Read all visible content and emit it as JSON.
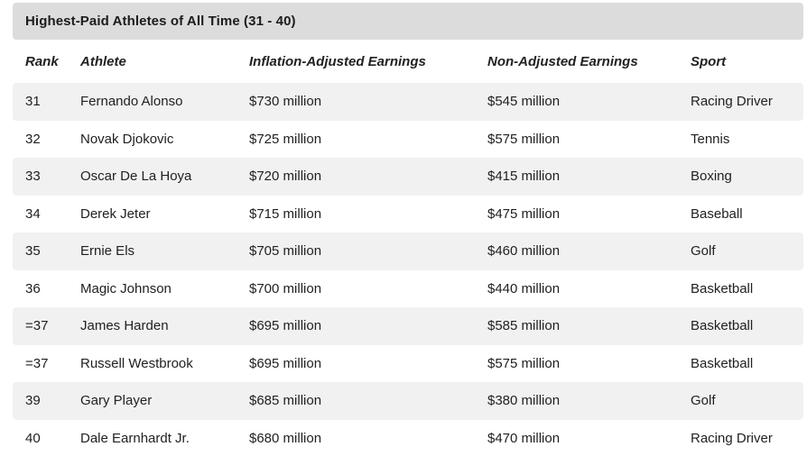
{
  "table": {
    "title": "Highest-Paid Athletes of All Time (31 - 40)",
    "columns": [
      "Rank",
      "Athlete",
      "Inflation-Adjusted Earnings",
      "Non-Adjusted Earnings",
      "Sport"
    ],
    "rows": [
      [
        "31",
        "Fernando Alonso",
        "$730 million",
        "$545 million",
        "Racing Driver"
      ],
      [
        "32",
        "Novak Djokovic",
        "$725 million",
        "$575 million",
        "Tennis"
      ],
      [
        "33",
        "Oscar De La Hoya",
        "$720 million",
        "$415 million",
        "Boxing"
      ],
      [
        "34",
        "Derek Jeter",
        "$715 million",
        "$475 million",
        "Baseball"
      ],
      [
        "35",
        "Ernie Els",
        "$705 million",
        "$460 million",
        "Golf"
      ],
      [
        "36",
        "Magic Johnson",
        "$700 million",
        "$440 million",
        "Basketball"
      ],
      [
        "=37",
        "James Harden",
        "$695 million",
        "$585 million",
        "Basketball"
      ],
      [
        "=37",
        "Russell Westbrook",
        "$695 million",
        "$575 million",
        "Basketball"
      ],
      [
        "39",
        "Gary Player",
        "$685 million",
        "$380 million",
        "Golf"
      ],
      [
        "40",
        "Dale Earnhardt Jr.",
        "$680 million",
        "$470 million",
        "Racing Driver"
      ]
    ],
    "colors": {
      "title_bar_bg": "#dcdcdc",
      "stripe_bg": "#f1f1f1",
      "text": "#212121"
    }
  },
  "chart_data": {
    "type": "table",
    "title": "Highest-Paid Athletes of All Time (31 - 40)",
    "columns": [
      "Rank",
      "Athlete",
      "Inflation-Adjusted Earnings",
      "Non-Adjusted Earnings",
      "Sport"
    ],
    "rows": [
      {
        "rank": "31",
        "athlete": "Fernando Alonso",
        "inflation_adjusted_earnings": "$730 million",
        "non_adjusted_earnings": "$545 million",
        "sport": "Racing Driver"
      },
      {
        "rank": "32",
        "athlete": "Novak Djokovic",
        "inflation_adjusted_earnings": "$725 million",
        "non_adjusted_earnings": "$575 million",
        "sport": "Tennis"
      },
      {
        "rank": "33",
        "athlete": "Oscar De La Hoya",
        "inflation_adjusted_earnings": "$720 million",
        "non_adjusted_earnings": "$415 million",
        "sport": "Boxing"
      },
      {
        "rank": "34",
        "athlete": "Derek Jeter",
        "inflation_adjusted_earnings": "$715 million",
        "non_adjusted_earnings": "$475 million",
        "sport": "Baseball"
      },
      {
        "rank": "35",
        "athlete": "Ernie Els",
        "inflation_adjusted_earnings": "$705 million",
        "non_adjusted_earnings": "$460 million",
        "sport": "Golf"
      },
      {
        "rank": "36",
        "athlete": "Magic Johnson",
        "inflation_adjusted_earnings": "$700 million",
        "non_adjusted_earnings": "$440 million",
        "sport": "Basketball"
      },
      {
        "rank": "=37",
        "athlete": "James Harden",
        "inflation_adjusted_earnings": "$695 million",
        "non_adjusted_earnings": "$585 million",
        "sport": "Basketball"
      },
      {
        "rank": "=37",
        "athlete": "Russell Westbrook",
        "inflation_adjusted_earnings": "$695 million",
        "non_adjusted_earnings": "$575 million",
        "sport": "Basketball"
      },
      {
        "rank": "39",
        "athlete": "Gary Player",
        "inflation_adjusted_earnings": "$685 million",
        "non_adjusted_earnings": "$380 million",
        "sport": "Golf"
      },
      {
        "rank": "40",
        "athlete": "Dale Earnhardt Jr.",
        "inflation_adjusted_earnings": "$680 million",
        "non_adjusted_earnings": "$470 million",
        "sport": "Racing Driver"
      }
    ],
    "layout": {
      "striped_rows": "odd data rows shaded",
      "header_style": "bold italic",
      "title_style": "bold on gray bar"
    }
  }
}
